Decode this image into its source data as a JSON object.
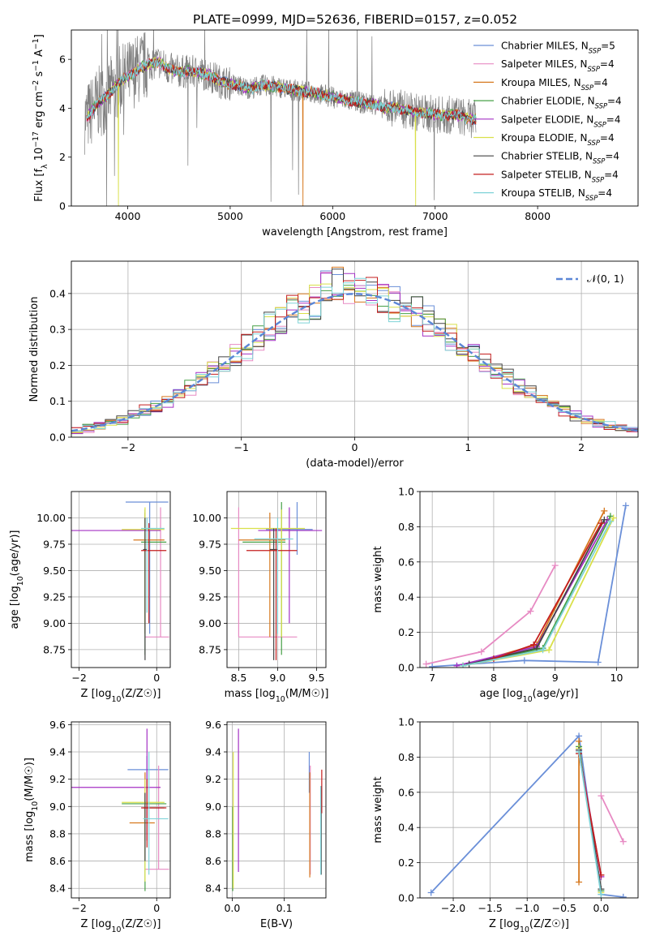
{
  "figure_title": "PLATE=0999, MJD=52636, FIBERID=0157, z=0.052",
  "colors": {
    "Chabrier MILES": "#6a8fd8",
    "Salpeter MILES": "#e78ac3",
    "Kroupa MILES": "#d6781e",
    "Chabrier ELODIE": "#47a047",
    "Salpeter ELODIE": "#a431c4",
    "Kroupa ELODIE": "#d9e04a",
    "Chabrier STELIB": "#444444",
    "Salpeter STELIB": "#c41e1e",
    "Kroupa STELIB": "#7fd3d8",
    "data": "#808080",
    "normal": "#5b86d6"
  },
  "chart_data": [
    {
      "id": "spectrum",
      "type": "line",
      "xlabel": "wavelength [Angstrom, rest frame]",
      "ylabel": "Flux [f_λ 10^-17 erg cm^-2 s^-1 A^-1]",
      "xlim": [
        3450,
        8980
      ],
      "ylim": [
        0,
        7.2
      ],
      "xticks": [
        4000,
        5000,
        6000,
        7000,
        8000
      ],
      "yticks": [
        0,
        2,
        4,
        6
      ],
      "legend_position": "right",
      "legend": [
        {
          "name": "Chabrier MILES",
          "label": "Chabrier MILES, N",
          "sub": "SSP",
          "suffix": "=5"
        },
        {
          "name": "Salpeter MILES",
          "label": "Salpeter MILES, N",
          "sub": "SSP",
          "suffix": "=4"
        },
        {
          "name": "Kroupa MILES",
          "label": "Kroupa MILES, N",
          "sub": "SSP",
          "suffix": "=4"
        },
        {
          "name": "Chabrier ELODIE",
          "label": "Chabrier ELODIE, N",
          "sub": "SSP",
          "suffix": "=4"
        },
        {
          "name": "Salpeter ELODIE",
          "label": "Salpeter ELODIE, N",
          "sub": "SSP",
          "suffix": "=4"
        },
        {
          "name": "Kroupa ELODIE",
          "label": "Kroupa ELODIE, N",
          "sub": "SSP",
          "suffix": "=4"
        },
        {
          "name": "Chabrier STELIB",
          "label": "Chabrier STELIB, N",
          "sub": "SSP",
          "suffix": "=4"
        },
        {
          "name": "Salpeter STELIB",
          "label": "Salpeter STELIB, N",
          "sub": "SSP",
          "suffix": "=4"
        },
        {
          "name": "Kroupa STELIB",
          "label": "Kroupa STELIB, N",
          "sub": "SSP",
          "suffix": "=4"
        }
      ],
      "continuum": [
        [
          3600,
          3.6
        ],
        [
          3700,
          4.2
        ],
        [
          3800,
          4.5
        ],
        [
          3900,
          5.0
        ],
        [
          4000,
          5.3
        ],
        [
          4100,
          5.6
        ],
        [
          4200,
          5.8
        ],
        [
          4300,
          5.9
        ],
        [
          4400,
          5.6
        ],
        [
          4500,
          5.5
        ],
        [
          4600,
          5.5
        ],
        [
          4700,
          5.45
        ],
        [
          4800,
          5.35
        ],
        [
          4900,
          5.1
        ],
        [
          5000,
          5.0
        ],
        [
          5100,
          4.9
        ],
        [
          5200,
          4.8
        ],
        [
          5300,
          4.95
        ],
        [
          5400,
          4.9
        ],
        [
          5500,
          4.85
        ],
        [
          5600,
          4.75
        ],
        [
          5700,
          4.7
        ],
        [
          5800,
          4.65
        ],
        [
          5900,
          4.55
        ],
        [
          6000,
          4.45
        ],
        [
          6100,
          4.35
        ],
        [
          6200,
          4.3
        ],
        [
          6300,
          4.2
        ],
        [
          6400,
          4.2
        ],
        [
          6500,
          4.0
        ],
        [
          6600,
          4.05
        ],
        [
          6700,
          3.95
        ],
        [
          6800,
          3.85
        ],
        [
          6900,
          3.8
        ],
        [
          7000,
          3.75
        ],
        [
          7100,
          3.7
        ],
        [
          7200,
          3.75
        ],
        [
          7300,
          3.6
        ],
        [
          7400,
          3.55
        ]
      ],
      "data_range": [
        3580,
        7400
      ],
      "model_range": [
        3600,
        7400
      ],
      "model_dropouts": [
        {
          "series": "Kroupa MILES",
          "x": 5710
        },
        {
          "series": "Kroupa ELODIE",
          "x": 3910
        },
        {
          "series": "Kroupa ELODIE",
          "x": 6810
        }
      ]
    },
    {
      "id": "residuals",
      "type": "histogram",
      "xlabel": "(data-model)/error",
      "ylabel": "Normed distribution",
      "xlim": [
        -2.5,
        2.5
      ],
      "ylim": [
        0,
        0.49
      ],
      "xticks": [
        -2,
        -1,
        0,
        1,
        2
      ],
      "yticks": [
        0,
        0.1,
        0.2,
        0.3,
        0.4
      ],
      "bin_width": 0.1,
      "bins_start": -2.5,
      "legend_label": "𝒩(0, 1)",
      "legend_position": "upper right",
      "normal": {
        "mean": 0,
        "sigma": 1
      }
    },
    {
      "id": "age-vs-Z",
      "type": "errorbar",
      "xlabel": "Z [log10(Z/Z☉)]",
      "ylabel": "age [log10(age/yr)]",
      "xlim": [
        -2.2,
        0.35
      ],
      "ylim": [
        8.58,
        10.25
      ],
      "xticks": [
        -2,
        0
      ],
      "yticks": [
        8.75,
        9.0,
        9.25,
        9.5,
        9.75,
        10.0
      ],
      "points": [
        {
          "series": "Chabrier MILES",
          "x": -0.18,
          "y": 10.15,
          "xlo": -0.8,
          "xhi": 0.3,
          "ylo": 8.9,
          "yhi": 10.15
        },
        {
          "series": "Salpeter MILES",
          "x": 0.1,
          "y": 8.87,
          "xlo": -0.3,
          "xhi": 0.32,
          "ylo": 8.87,
          "yhi": 10.1
        },
        {
          "series": "Kroupa MILES",
          "x": -0.3,
          "y": 9.79,
          "xlo": -0.6,
          "xhi": 0.2,
          "ylo": 8.9,
          "yhi": 10.05
        },
        {
          "series": "Chabrier ELODIE",
          "x": -0.3,
          "y": 9.77,
          "xlo": -0.4,
          "xhi": 0.25,
          "ylo": 8.7,
          "yhi": 10.08
        },
        {
          "series": "Salpeter ELODIE",
          "x": -0.5,
          "y": 9.88,
          "xlo": -2.2,
          "xhi": 0.1,
          "ylo": 9.88,
          "yhi": 9.88
        },
        {
          "series": "Kroupa ELODIE",
          "x": -0.3,
          "y": 9.89,
          "xlo": -0.9,
          "xhi": 0.2,
          "ylo": 9.0,
          "yhi": 10.1
        },
        {
          "series": "Chabrier STELIB",
          "x": -0.3,
          "y": 9.7,
          "xlo": -0.35,
          "xhi": -0.25,
          "ylo": 8.65,
          "yhi": 10.0
        },
        {
          "series": "Salpeter STELIB",
          "x": -0.2,
          "y": 9.69,
          "xlo": -0.4,
          "xhi": 0.25,
          "ylo": 9.0,
          "yhi": 9.95
        },
        {
          "series": "Kroupa STELIB",
          "x": -0.25,
          "y": 9.9,
          "xlo": -0.4,
          "xhi": 0.2,
          "ylo": 9.1,
          "yhi": 10.0
        }
      ]
    },
    {
      "id": "age-vs-mass",
      "type": "errorbar",
      "xlabel": "mass [log10(M/M☉)]",
      "ylabel": "",
      "xlim": [
        8.35,
        9.62
      ],
      "ylim": [
        8.58,
        10.25
      ],
      "xticks": [
        8.5,
        9.0,
        9.5
      ],
      "yticks": [
        8.75,
        9.0,
        9.25,
        9.5,
        9.75,
        10.0
      ],
      "points": [
        {
          "series": "Chabrier MILES",
          "x": 9.25,
          "y": 9.89,
          "xlo": 8.85,
          "xhi": 9.45,
          "ylo": 9.65,
          "yhi": 10.15
        },
        {
          "series": "Salpeter MILES",
          "x": 8.5,
          "y": 8.87,
          "xlo": 8.5,
          "xhi": 9.25,
          "ylo": 8.87,
          "yhi": 10.1
        },
        {
          "series": "Kroupa MILES",
          "x": 8.9,
          "y": 9.79,
          "xlo": 8.5,
          "xhi": 9.1,
          "ylo": 8.87,
          "yhi": 10.05
        },
        {
          "series": "Chabrier ELODIE",
          "x": 9.05,
          "y": 9.77,
          "xlo": 8.55,
          "xhi": 9.1,
          "ylo": 8.7,
          "yhi": 10.15
        },
        {
          "series": "Salpeter ELODIE",
          "x": 9.15,
          "y": 9.88,
          "xlo": 8.75,
          "xhi": 9.57,
          "ylo": 9.0,
          "yhi": 10.1
        },
        {
          "series": "Kroupa ELODIE",
          "x": 9.05,
          "y": 9.9,
          "xlo": 8.4,
          "xhi": 9.35,
          "ylo": 8.87,
          "yhi": 10.08
        },
        {
          "series": "Chabrier STELIB",
          "x": 8.95,
          "y": 9.7,
          "xlo": 8.9,
          "xhi": 9.0,
          "ylo": 8.65,
          "yhi": 9.9
        },
        {
          "series": "Salpeter STELIB",
          "x": 8.98,
          "y": 9.69,
          "xlo": 8.6,
          "xhi": 9.25,
          "ylo": 8.65,
          "yhi": 9.9
        },
        {
          "series": "Kroupa STELIB",
          "x": 9.0,
          "y": 9.8,
          "xlo": 8.7,
          "xhi": 9.2,
          "ylo": 8.9,
          "yhi": 10.0
        }
      ]
    },
    {
      "id": "massweight-vs-age",
      "type": "line",
      "xlabel": "age [log10(age/yr)]",
      "ylabel": "mass weight",
      "xlim": [
        6.8,
        10.35
      ],
      "ylim": [
        0,
        1.0
      ],
      "xticks": [
        7,
        8,
        9,
        10
      ],
      "yticks": [
        0,
        0.2,
        0.4,
        0.6,
        0.8,
        1.0
      ],
      "series": [
        {
          "name": "Chabrier MILES",
          "x": [
            7.0,
            8.5,
            9.7,
            10.15
          ],
          "y": [
            0.005,
            0.04,
            0.03,
            0.92
          ]
        },
        {
          "name": "Salpeter MILES",
          "x": [
            6.9,
            7.8,
            8.6,
            9.0
          ],
          "y": [
            0.02,
            0.09,
            0.32,
            0.58
          ]
        },
        {
          "name": "Kroupa MILES",
          "x": [
            7.5,
            8.7,
            9.8
          ],
          "y": [
            0.01,
            0.13,
            0.89
          ]
        },
        {
          "name": "Chabrier ELODIE",
          "x": [
            7.5,
            8.8,
            9.9
          ],
          "y": [
            0.01,
            0.11,
            0.86
          ]
        },
        {
          "name": "Salpeter ELODIE",
          "x": [
            7.4,
            8.7,
            9.85
          ],
          "y": [
            0.01,
            0.12,
            0.84
          ]
        },
        {
          "name": "Kroupa ELODIE",
          "x": [
            7.5,
            8.9,
            9.95
          ],
          "y": [
            0.01,
            0.1,
            0.85
          ]
        },
        {
          "name": "Chabrier STELIB",
          "x": [
            7.6,
            8.7,
            9.8
          ],
          "y": [
            0.02,
            0.11,
            0.84
          ]
        },
        {
          "name": "Salpeter STELIB",
          "x": [
            8.0,
            8.65,
            9.75
          ],
          "y": [
            0.05,
            0.13,
            0.82
          ]
        },
        {
          "name": "Kroupa STELIB",
          "x": [
            7.5,
            8.8,
            9.9
          ],
          "y": [
            0.01,
            0.1,
            0.83
          ]
        }
      ]
    },
    {
      "id": "mass-vs-Z",
      "type": "errorbar",
      "xlabel": "Z [log10(Z/Z☉)]",
      "ylabel": "mass [log10(M/M☉)]",
      "xlim": [
        -2.2,
        0.35
      ],
      "ylim": [
        8.33,
        9.62
      ],
      "xticks": [
        -2,
        0
      ],
      "yticks": [
        8.4,
        8.6,
        8.8,
        9.0,
        9.2,
        9.4,
        9.6
      ],
      "points": [
        {
          "series": "Chabrier MILES",
          "x": -0.25,
          "y": 9.27,
          "xlo": -0.75,
          "xhi": 0.3,
          "ylo": 8.9,
          "yhi": 9.37
        },
        {
          "series": "Salpeter MILES",
          "x": 0.05,
          "y": 8.54,
          "xlo": -0.3,
          "xhi": 0.32,
          "ylo": 8.54,
          "yhi": 9.3
        },
        {
          "series": "Kroupa MILES",
          "x": -0.3,
          "y": 8.88,
          "xlo": -0.7,
          "xhi": -0.05,
          "ylo": 8.75,
          "yhi": 9.25
        },
        {
          "series": "Chabrier ELODIE",
          "x": -0.3,
          "y": 9.02,
          "xlo": -0.9,
          "xhi": 0.25,
          "ylo": 8.38,
          "yhi": 9.1
        },
        {
          "series": "Salpeter ELODIE",
          "x": -0.25,
          "y": 9.14,
          "xlo": -2.2,
          "xhi": 0.1,
          "ylo": 8.75,
          "yhi": 9.57
        },
        {
          "series": "Kroupa ELODIE",
          "x": -0.3,
          "y": 9.03,
          "xlo": -0.9,
          "xhi": 0.2,
          "ylo": 8.45,
          "yhi": 9.2
        },
        {
          "series": "Chabrier STELIB",
          "x": -0.3,
          "y": 8.99,
          "xlo": -0.35,
          "xhi": 0.2,
          "ylo": 8.6,
          "yhi": 9.1
        },
        {
          "series": "Salpeter STELIB",
          "x": -0.25,
          "y": 8.99,
          "xlo": -0.4,
          "xhi": 0.25,
          "ylo": 8.7,
          "yhi": 9.2
        },
        {
          "series": "Kroupa STELIB",
          "x": -0.2,
          "y": 8.91,
          "xlo": -0.35,
          "xhi": 0.3,
          "ylo": 8.5,
          "yhi": 9.4
        }
      ]
    },
    {
      "id": "mass-vs-EBV",
      "type": "errorbar",
      "xlabel": "E(B-V)",
      "ylabel": "",
      "xlim": [
        -0.01,
        0.18
      ],
      "ylim": [
        8.33,
        9.62
      ],
      "xticks": [
        0.0,
        0.1
      ],
      "yticks": [
        8.4,
        8.6,
        8.8,
        9.0,
        9.2,
        9.4,
        9.6
      ],
      "points": [
        {
          "series": "Chabrier MILES",
          "x": 0.148,
          "y": 9.2,
          "xlo": 0.148,
          "xhi": 0.148,
          "ylo": 9.1,
          "yhi": 9.4
        },
        {
          "series": "Salpeter MILES",
          "x": 0.15,
          "y": 9.0,
          "xlo": 0.15,
          "xhi": 0.15,
          "ylo": 8.5,
          "yhi": 9.3
        },
        {
          "series": "Kroupa MILES",
          "x": 0.149,
          "y": 9.0,
          "xlo": 0.149,
          "xhi": 0.149,
          "ylo": 8.48,
          "yhi": 9.25
        },
        {
          "series": "Chabrier ELODIE",
          "x": 0.001,
          "y": 8.9,
          "xlo": 0.001,
          "xhi": 0.001,
          "ylo": 8.38,
          "yhi": 9.0
        },
        {
          "series": "Salpeter ELODIE",
          "x": 0.012,
          "y": 9.0,
          "xlo": 0.012,
          "xhi": 0.012,
          "ylo": 8.52,
          "yhi": 9.57
        },
        {
          "series": "Kroupa ELODIE",
          "x": 0.002,
          "y": 9.0,
          "xlo": 0.002,
          "xhi": 0.002,
          "ylo": 8.4,
          "yhi": 9.4
        },
        {
          "series": "Chabrier STELIB",
          "x": 0.171,
          "y": 8.9,
          "xlo": 0.171,
          "xhi": 0.171,
          "ylo": 8.5,
          "yhi": 9.15
        },
        {
          "series": "Salpeter STELIB",
          "x": 0.172,
          "y": 9.1,
          "xlo": 0.172,
          "xhi": 0.172,
          "ylo": 8.95,
          "yhi": 9.27
        },
        {
          "series": "Kroupa STELIB",
          "x": 0.17,
          "y": 9.0,
          "xlo": 0.17,
          "xhi": 0.17,
          "ylo": 8.5,
          "yhi": 9.15
        }
      ]
    },
    {
      "id": "massweight-vs-Z",
      "type": "line",
      "xlabel": "Z [log10(Z/Z☉)]",
      "ylabel": "mass weight",
      "xlim": [
        -2.45,
        0.5
      ],
      "ylim": [
        0,
        1.0
      ],
      "xticks": [
        -2.0,
        -1.5,
        -1.0,
        -0.5,
        0.0
      ],
      "yticks": [
        0,
        0.2,
        0.4,
        0.6,
        0.8,
        1.0
      ],
      "series": [
        {
          "name": "Chabrier MILES",
          "x": [
            -2.3,
            -0.3,
            0.0,
            0.3
          ],
          "y": [
            0.03,
            0.92,
            0.02,
            0.005
          ]
        },
        {
          "name": "Salpeter MILES",
          "x": [
            0.0,
            0.3
          ],
          "y": [
            0.58,
            0.32
          ]
        },
        {
          "name": "Kroupa MILES",
          "x": [
            -0.3,
            -0.3
          ],
          "y": [
            0.89,
            0.09
          ]
        },
        {
          "name": "Chabrier ELODIE",
          "x": [
            -0.3,
            0.0
          ],
          "y": [
            0.86,
            0.04
          ]
        },
        {
          "name": "Salpeter ELODIE",
          "x": [
            -0.3,
            0.0
          ],
          "y": [
            0.84,
            0.12
          ]
        },
        {
          "name": "Kroupa ELODIE",
          "x": [
            -0.3,
            0.0
          ],
          "y": [
            0.85,
            0.03
          ]
        },
        {
          "name": "Chabrier STELIB",
          "x": [
            -0.3,
            0.0
          ],
          "y": [
            0.84,
            0.05
          ]
        },
        {
          "name": "Salpeter STELIB",
          "x": [
            -0.3,
            0.0
          ],
          "y": [
            0.82,
            0.13
          ]
        },
        {
          "name": "Kroupa STELIB",
          "x": [
            -0.3,
            0.0
          ],
          "y": [
            0.83,
            0.02
          ]
        }
      ]
    }
  ]
}
